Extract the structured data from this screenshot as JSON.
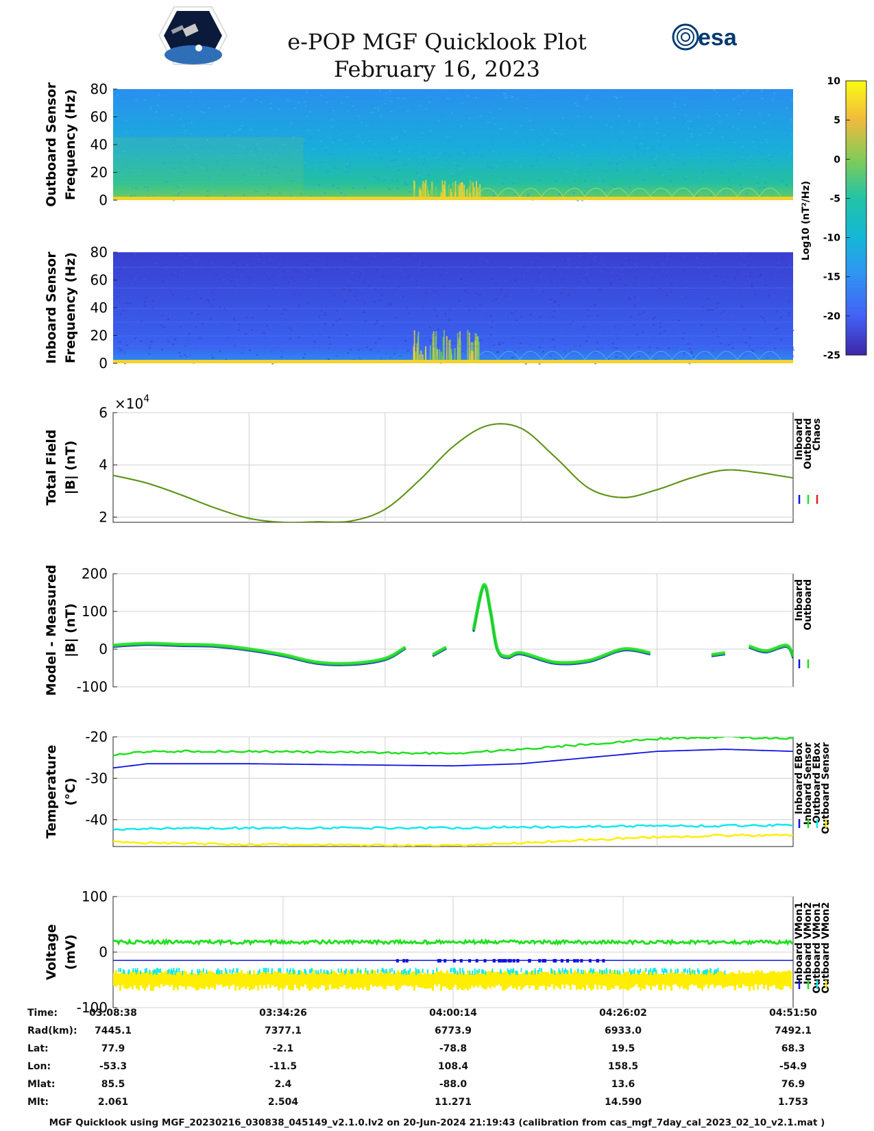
{
  "header": {
    "title": "e-POP MGF Quicklook Plot",
    "date": "February 16, 2023",
    "logo_left": "CASSIOPE mission logo",
    "logo_right_text": "esa"
  },
  "colors": {
    "inboard": "#1010e0",
    "outboard": "#20e020",
    "chaos": "#e02020",
    "cyan": "#10e8f0",
    "yellow": "#ffee00",
    "grid": "#d0d0d0"
  },
  "chart_data": [
    {
      "type": "heatmap",
      "id": "outboard-spectrogram",
      "ylabel": [
        "Outboard Sensor",
        "Frequency (Hz)"
      ],
      "yticks": [
        "0",
        "20",
        "40",
        "60",
        "80"
      ],
      "ylim": [
        0,
        80
      ]
    },
    {
      "type": "heatmap",
      "id": "inboard-spectrogram",
      "ylabel": [
        "Inboard Sensor",
        "Frequency (Hz)"
      ],
      "yticks": [
        "0",
        "20",
        "40",
        "60",
        "80"
      ],
      "ylim": [
        0,
        80
      ]
    },
    {
      "type": "colorbar",
      "id": "colorbar",
      "label": "Log10 (nT²/Hz)",
      "ticks": [
        "10",
        "5",
        "0",
        "-5",
        "-10",
        "-15",
        "-20",
        "-25"
      ],
      "range": [
        -25,
        10
      ]
    },
    {
      "type": "line",
      "id": "total-field",
      "ylabel": [
        "Total Field",
        "|B| (nT)"
      ],
      "multiplier": "×10",
      "multiplier_exp": "4",
      "yticks": [
        "2",
        "4",
        "6"
      ],
      "ylim": [
        1.8,
        6.0
      ],
      "legend": [
        "Inboard",
        "Outboard",
        "Chaos"
      ],
      "x": [
        0,
        0.05,
        0.1,
        0.15,
        0.2,
        0.25,
        0.3,
        0.35,
        0.4,
        0.45,
        0.5,
        0.55,
        0.6,
        0.65,
        0.7,
        0.75,
        0.8,
        0.85,
        0.9,
        0.95,
        1.0
      ],
      "y": [
        3.6,
        3.3,
        2.85,
        2.35,
        1.95,
        1.8,
        1.82,
        1.85,
        2.3,
        3.4,
        4.7,
        5.5,
        5.4,
        4.3,
        3.1,
        2.75,
        3.05,
        3.5,
        3.8,
        3.7,
        3.5
      ]
    },
    {
      "type": "line",
      "id": "model-measured",
      "ylabel": [
        "Model - Measured",
        "|B| (nT)"
      ],
      "yticks": [
        "-100",
        "0",
        "100",
        "200"
      ],
      "ylim": [
        -100,
        200
      ],
      "legend": [
        "Inboard",
        "Outboard"
      ],
      "segments": [
        {
          "x": [
            0,
            0.05,
            0.1,
            0.15,
            0.2,
            0.25,
            0.3,
            0.35,
            0.4,
            0.43
          ],
          "y": [
            10,
            15,
            12,
            10,
            0,
            -15,
            -35,
            -38,
            -25,
            5
          ]
        },
        {
          "x": [
            0.47,
            0.49
          ],
          "y": [
            -15,
            5
          ]
        },
        {
          "x": [
            0.53,
            0.545,
            0.555,
            0.565,
            0.58,
            0.6,
            0.65,
            0.7,
            0.75,
            0.79
          ],
          "y": [
            50,
            170,
            100,
            0,
            -20,
            -10,
            -35,
            -30,
            0,
            -10
          ]
        },
        {
          "x": [
            0.88,
            0.9
          ],
          "y": [
            -15,
            -10
          ]
        },
        {
          "x": [
            0.935,
            0.96,
            0.99,
            1.0
          ],
          "y": [
            8,
            -5,
            10,
            -20
          ]
        }
      ]
    },
    {
      "type": "line",
      "id": "temperature",
      "ylabel": [
        "Temperature",
        "(°C)"
      ],
      "yticks": [
        "-40",
        "-30",
        "-20"
      ],
      "ylim": [
        -46.5,
        -20
      ],
      "legend": [
        "Inboard EBox",
        "Inboard Sensor",
        "Outboard EBox",
        "Outboard Sensor"
      ],
      "x": [
        0,
        0.05,
        0.2,
        0.5,
        0.6,
        0.8,
        0.9,
        1.0
      ],
      "series": [
        {
          "name": "Inboard EBox",
          "values": [
            -27.5,
            -26.5,
            -26.5,
            -27,
            -26.5,
            -23.5,
            -23,
            -23.5
          ]
        },
        {
          "name": "Inboard Sensor",
          "values": [
            -24.5,
            -23.5,
            -23.5,
            -24,
            -23,
            -20.5,
            -20,
            -20.5
          ]
        },
        {
          "name": "Outboard EBox",
          "values": [
            -42.5,
            -42.2,
            -42,
            -42,
            -41.8,
            -41.5,
            -41.5,
            -41.3
          ]
        },
        {
          "name": "Outboard Sensor",
          "values": [
            -45.2,
            -45.6,
            -46,
            -46.3,
            -45.6,
            -44.2,
            -43.8,
            -43.8
          ]
        }
      ]
    },
    {
      "type": "line",
      "id": "voltage",
      "ylabel": [
        "Voltage",
        "(mV)"
      ],
      "yticks": [
        "-100",
        "0",
        "100"
      ],
      "ylim": [
        -100,
        100
      ],
      "legend": [
        "Inboard VMon1",
        "Inboard VMon2",
        "Outboard VMon1",
        "Outboard VMon2"
      ],
      "series": [
        {
          "name": "Inboard VMon1",
          "level": -15
        },
        {
          "name": "Inboard VMon2",
          "level": 18
        },
        {
          "name": "Outboard VMon1",
          "level": -32
        },
        {
          "name": "Outboard VMon2",
          "level": -45
        }
      ]
    }
  ],
  "ephemeris": {
    "labels": [
      "Time:",
      "Rad(km):",
      "Lat:",
      "Lon:",
      "Mlat:",
      "Mlt:"
    ],
    "columns": [
      [
        "03:08:38",
        "7445.1",
        "77.9",
        "-53.3",
        "85.5",
        "2.061"
      ],
      [
        "03:34:26",
        "7377.1",
        "-2.1",
        "-11.5",
        "2.4",
        "2.504"
      ],
      [
        "04:00:14",
        "6773.9",
        "-78.8",
        "108.4",
        "-88.0",
        "11.271"
      ],
      [
        "04:26:02",
        "6933.0",
        "19.5",
        "158.5",
        "13.6",
        "14.590"
      ],
      [
        "04:51:50",
        "7492.1",
        "68.3",
        "-54.9",
        "76.9",
        "1.753"
      ]
    ]
  },
  "footer": "MGF Quicklook using MGF_20230216_030838_045149_v2.1.0.lv2 on 20-Jun-2024 21:19:43 (calibration from cas_mgf_7day_cal_2023_02_10_v2.1.mat )"
}
